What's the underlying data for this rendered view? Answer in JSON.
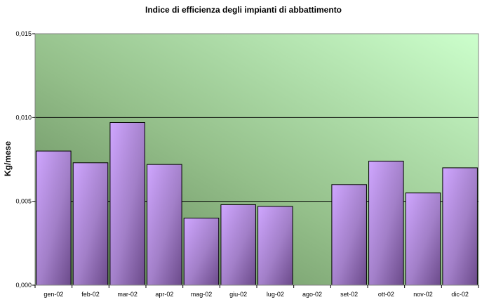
{
  "chart_data": {
    "type": "bar",
    "title": "Indice di efficienza degli impianti di abbattimento",
    "xlabel": "",
    "ylabel": "Kg/mese",
    "categories": [
      "gen-02",
      "feb-02",
      "mar-02",
      "apr-02",
      "mag-02",
      "giu-02",
      "lug-02",
      "ago-02",
      "set-02",
      "ott-02",
      "nov-02",
      "dic-02"
    ],
    "values": [
      0.008,
      0.0073,
      0.0097,
      0.0072,
      0.004,
      0.0048,
      0.0047,
      0.0,
      0.006,
      0.0074,
      0.0055,
      0.007
    ],
    "ylim": [
      0,
      0.015
    ],
    "yticks": [
      0,
      0.005,
      0.01,
      0.015
    ],
    "ytick_labels": [
      "0,000",
      "0,005",
      "0,010",
      "0,015"
    ],
    "grid": true,
    "legend": "none",
    "colors": {
      "bar_light": "#cfa6ff",
      "bar_dark": "#6b4a8a",
      "plot_light": "#ccffcc",
      "plot_dark": "#5c7f52"
    }
  }
}
